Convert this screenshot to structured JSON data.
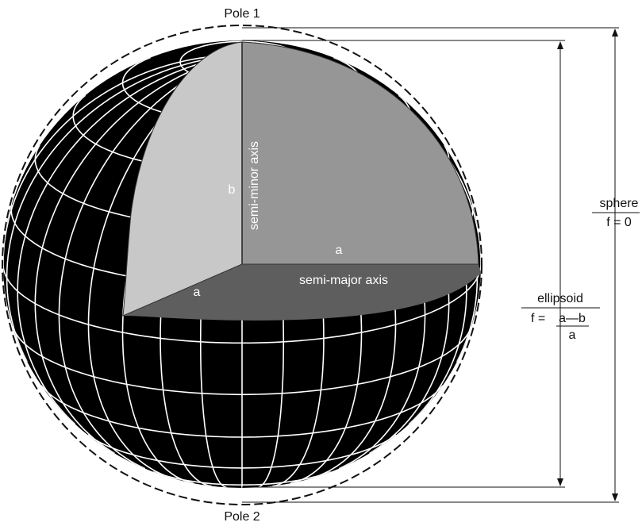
{
  "labels": {
    "pole_top": "Pole 1",
    "pole_bottom": "Pole 2",
    "semi_minor_axis": "semi-minor axis",
    "semi_major_axis": "semi-major axis",
    "a_horizontal": "a",
    "a_diagonal": "a",
    "b": "b"
  },
  "sphere": {
    "title": "sphere",
    "formula": "f = 0"
  },
  "ellipsoid": {
    "title": "ellipsoid",
    "formula_prefix": "f =",
    "numerator": "a—b",
    "denominator": "a"
  },
  "colors": {
    "globe": "#000000",
    "grid": "#ffffff",
    "cut_left": "#c8c8c8",
    "cut_right": "#969696",
    "cut_floor": "#5e5e5e",
    "dimension_line": "#111111"
  }
}
